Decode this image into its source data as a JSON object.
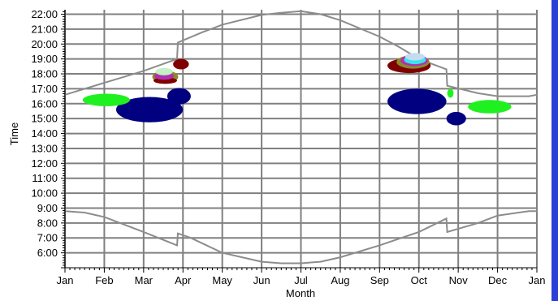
{
  "chart_data": {
    "type": "area",
    "title": "",
    "xlabel": "Month",
    "ylabel": "Time",
    "x_ticks": [
      "Jan",
      "Feb",
      "Mar",
      "Apr",
      "May",
      "Jun",
      "Jul",
      "Aug",
      "Sep",
      "Oct",
      "Nov",
      "Dec",
      "Jan"
    ],
    "y_ticks": [
      "6:00",
      "7:00",
      "8:00",
      "9:00",
      "10:00",
      "11:00",
      "12:00",
      "13:00",
      "14:00",
      "15:00",
      "16:00",
      "17:00",
      "18:00",
      "19:00",
      "20:00",
      "21:00",
      "22:00"
    ],
    "xlim": [
      0,
      12
    ],
    "ylim": [
      5.0,
      22.3
    ],
    "grid": true,
    "legend": "none",
    "colors": {
      "grid": "#808080",
      "curve": "#8c8c8c",
      "navy": "#000080",
      "green": "#1ff01f",
      "maroon": "#800000",
      "olive": "#8b8b2a",
      "purple": "#b030b0",
      "cyan": "#3ae4ee",
      "light_green": "#c4f0c4",
      "light_blue": "#c4dcf0",
      "blue_bar": "#2a3fd8"
    },
    "sunset_curve": {
      "x": [
        0,
        1,
        2,
        2.85,
        2.87,
        3.5,
        4,
        5,
        5.5,
        6,
        6.5,
        7,
        8,
        8.5,
        9,
        9.7,
        9.72,
        10.5,
        11,
        11.8,
        12
      ],
      "y": [
        16.6,
        17.4,
        18.2,
        19.0,
        20.1,
        20.8,
        21.3,
        21.95,
        22.1,
        22.2,
        22.0,
        21.6,
        20.5,
        19.8,
        19.0,
        18.3,
        17.2,
        16.7,
        16.5,
        16.5,
        16.6
      ]
    },
    "sunrise_curve": {
      "x": [
        0,
        0.5,
        1,
        2,
        2.85,
        2.87,
        3.2,
        4,
        5,
        5.5,
        6,
        6.5,
        7,
        8,
        9,
        9.7,
        9.72,
        10.5,
        11,
        11.8,
        12
      ],
      "y": [
        8.8,
        8.7,
        8.4,
        7.4,
        6.5,
        7.3,
        7.0,
        6.0,
        5.4,
        5.3,
        5.3,
        5.4,
        5.7,
        6.5,
        7.4,
        8.3,
        7.4,
        8.0,
        8.5,
        8.8,
        8.8
      ]
    },
    "regions": [
      {
        "color": "navy",
        "cx": 2.15,
        "cy": 15.6,
        "rx": 0.85,
        "ry": 0.85
      },
      {
        "color": "navy",
        "cx": 2.9,
        "cy": 16.5,
        "rx": 0.3,
        "ry": 0.55
      },
      {
        "color": "green",
        "cx": 1.05,
        "cy": 16.25,
        "rx": 0.6,
        "ry": 0.42
      },
      {
        "color": "maroon",
        "cx": 2.95,
        "cy": 18.65,
        "rx": 0.2,
        "ry": 0.35
      },
      {
        "color": "olive",
        "cx": 2.55,
        "cy": 17.8,
        "rx": 0.33,
        "ry": 0.42
      },
      {
        "color": "maroon",
        "cx": 2.55,
        "cy": 17.55,
        "rx": 0.3,
        "ry": 0.22
      },
      {
        "color": "purple",
        "cx": 2.52,
        "cy": 17.85,
        "rx": 0.25,
        "ry": 0.25
      },
      {
        "color": "light_green",
        "cx": 2.52,
        "cy": 18.15,
        "rx": 0.22,
        "ry": 0.25
      },
      {
        "color": "navy",
        "cx": 8.95,
        "cy": 16.15,
        "rx": 0.75,
        "ry": 0.85
      },
      {
        "color": "navy",
        "cx": 9.95,
        "cy": 15.0,
        "rx": 0.25,
        "ry": 0.45
      },
      {
        "color": "green",
        "cx": 10.8,
        "cy": 15.8,
        "rx": 0.55,
        "ry": 0.45
      },
      {
        "color": "green",
        "cx": 9.8,
        "cy": 16.7,
        "rx": 0.08,
        "ry": 0.3
      },
      {
        "color": "maroon",
        "cx": 8.75,
        "cy": 18.55,
        "rx": 0.55,
        "ry": 0.5
      },
      {
        "color": "olive",
        "cx": 8.85,
        "cy": 18.8,
        "rx": 0.42,
        "ry": 0.45
      },
      {
        "color": "purple",
        "cx": 8.88,
        "cy": 18.9,
        "rx": 0.35,
        "ry": 0.38
      },
      {
        "color": "cyan",
        "cx": 8.9,
        "cy": 18.95,
        "rx": 0.28,
        "ry": 0.3
      },
      {
        "color": "light_blue",
        "cx": 8.9,
        "cy": 19.15,
        "rx": 0.25,
        "ry": 0.25
      }
    ]
  }
}
